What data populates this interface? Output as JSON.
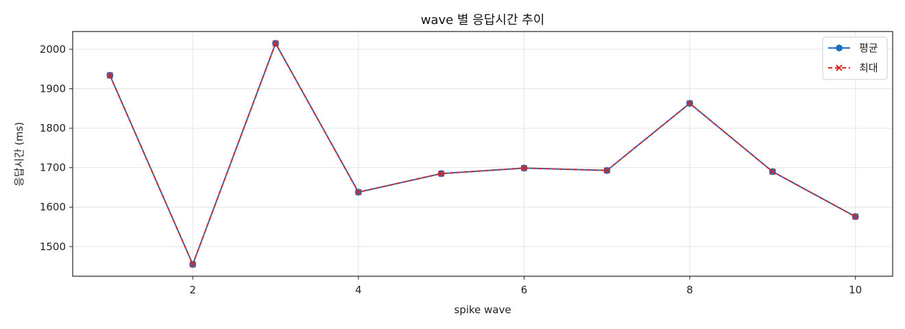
{
  "chart_data": {
    "type": "line",
    "title": "wave 별 응답시간 추이",
    "xlabel": "spike wave",
    "ylabel": "응답시간 (ms)",
    "x": [
      1,
      2,
      3,
      4,
      5,
      6,
      7,
      8,
      9,
      10
    ],
    "xlim": [
      0.55,
      10.45
    ],
    "ylim": [
      1425,
      2045
    ],
    "xticks": [
      2,
      4,
      6,
      8,
      10
    ],
    "yticks": [
      1500,
      1600,
      1700,
      1800,
      1900,
      2000
    ],
    "grid": true,
    "legend_position": "top-right",
    "series": [
      {
        "name": "평균",
        "values": [
          1934,
          1455,
          2015,
          1638,
          1685,
          1699,
          1693,
          1863,
          1690,
          1576
        ],
        "color": "#1f6fbf",
        "marker": "circle",
        "linestyle": "solid"
      },
      {
        "name": "최대",
        "values": [
          1934,
          1455,
          2015,
          1638,
          1685,
          1699,
          1693,
          1863,
          1690,
          1576
        ],
        "color": "#d62728",
        "marker": "x",
        "linestyle": "dashed"
      }
    ]
  }
}
